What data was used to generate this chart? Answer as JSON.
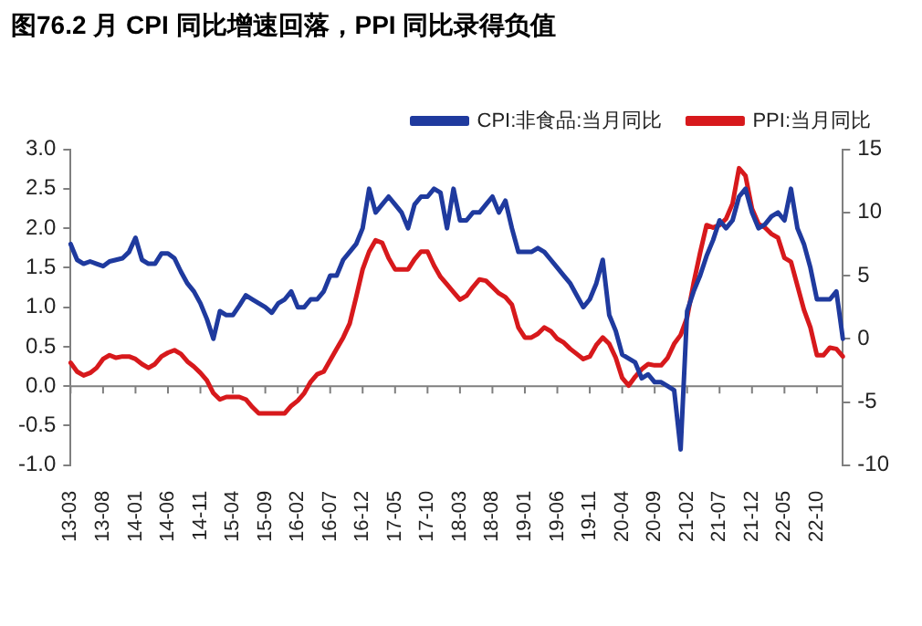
{
  "chart_data": {
    "type": "line",
    "title": "图76.2 月 CPI 同比增速回落，PPI 同比录得负值",
    "categories": [
      "13-03",
      null,
      null,
      null,
      null,
      "13-08",
      null,
      null,
      null,
      null,
      "14-01",
      null,
      null,
      null,
      null,
      "14-06",
      null,
      null,
      null,
      null,
      "14-11",
      null,
      null,
      null,
      null,
      "15-04",
      null,
      null,
      null,
      null,
      "15-09",
      null,
      null,
      null,
      null,
      "16-02",
      null,
      null,
      null,
      null,
      "16-07",
      null,
      null,
      null,
      null,
      "16-12",
      null,
      null,
      null,
      null,
      "17-05",
      null,
      null,
      null,
      null,
      "17-10",
      null,
      null,
      null,
      null,
      "18-03",
      null,
      null,
      null,
      null,
      "18-08",
      null,
      null,
      null,
      null,
      "19-01",
      null,
      null,
      null,
      null,
      "19-06",
      null,
      null,
      null,
      null,
      "19-11",
      null,
      null,
      null,
      null,
      "20-04",
      null,
      null,
      null,
      null,
      "20-09",
      null,
      null,
      null,
      null,
      "21-02",
      null,
      null,
      null,
      null,
      "21-07",
      null,
      null,
      null,
      null,
      "21-12",
      null,
      null,
      null,
      null,
      "22-05",
      null,
      null,
      null,
      null,
      "22-10",
      null,
      null,
      null,
      null
    ],
    "series": [
      {
        "name": "CPI:非食品:当月同比",
        "color": "#1f3a9e",
        "values": [
          1.8,
          1.6,
          1.55,
          1.58,
          1.55,
          1.52,
          1.58,
          1.6,
          1.62,
          1.7,
          1.88,
          1.6,
          1.55,
          1.55,
          1.68,
          1.68,
          1.62,
          1.45,
          1.3,
          1.2,
          1.05,
          0.85,
          0.6,
          0.95,
          0.9,
          0.9,
          1.02,
          1.15,
          1.1,
          1.05,
          1.0,
          0.93,
          1.05,
          1.1,
          1.2,
          1.0,
          1.0,
          1.1,
          1.1,
          1.2,
          1.4,
          1.4,
          1.6,
          1.7,
          1.8,
          2.0,
          2.5,
          2.2,
          2.3,
          2.4,
          2.3,
          2.2,
          2.0,
          2.3,
          2.4,
          2.4,
          2.5,
          2.45,
          2.0,
          2.5,
          2.1,
          2.1,
          2.2,
          2.2,
          2.3,
          2.4,
          2.2,
          2.35,
          2.0,
          1.7,
          1.7,
          1.7,
          1.75,
          1.7,
          1.6,
          1.5,
          1.4,
          1.3,
          1.15,
          1.0,
          1.1,
          1.3,
          1.6,
          0.9,
          0.7,
          0.4,
          0.35,
          0.3,
          0.1,
          0.15,
          0.05,
          0.05,
          0.0,
          -0.05,
          -0.8,
          0.95,
          1.2,
          1.4,
          1.65,
          1.85,
          2.1,
          2.0,
          2.1,
          2.4,
          2.5,
          2.2,
          2.0,
          2.05,
          2.15,
          2.2,
          2.1,
          2.5,
          2.0,
          1.8,
          1.5,
          1.1,
          1.1,
          1.1,
          1.2,
          0.6
        ]
      },
      {
        "name": "PPI:当月同比",
        "color": "#d7191c",
        "axis": "y2",
        "values": [
          -1.9,
          -2.6,
          -2.9,
          -2.7,
          -2.3,
          -1.6,
          -1.3,
          -1.5,
          -1.4,
          -1.4,
          -1.6,
          -2.0,
          -2.3,
          -2.0,
          -1.4,
          -1.1,
          -0.9,
          -1.2,
          -1.8,
          -2.2,
          -2.7,
          -3.3,
          -4.3,
          -4.8,
          -4.6,
          -4.6,
          -4.6,
          -4.8,
          -5.4,
          -5.9,
          -5.9,
          -5.9,
          -5.9,
          -5.9,
          -5.3,
          -4.9,
          -4.3,
          -3.4,
          -2.8,
          -2.6,
          -1.7,
          -0.8,
          0.1,
          1.2,
          3.3,
          5.5,
          6.9,
          7.8,
          7.6,
          6.4,
          5.5,
          5.5,
          5.5,
          6.3,
          6.9,
          6.9,
          5.8,
          4.9,
          4.3,
          3.7,
          3.1,
          3.4,
          4.1,
          4.7,
          4.6,
          4.1,
          3.6,
          3.3,
          2.7,
          0.9,
          0.1,
          0.1,
          0.4,
          0.9,
          0.6,
          0.0,
          -0.3,
          -0.8,
          -1.2,
          -1.6,
          -1.4,
          -0.5,
          0.1,
          -0.4,
          -1.5,
          -3.1,
          -3.7,
          -3.0,
          -2.4,
          -2.0,
          -2.1,
          -2.1,
          -1.5,
          -0.4,
          0.3,
          1.7,
          4.4,
          6.8,
          9.0,
          8.8,
          9.0,
          9.5,
          10.7,
          13.5,
          12.9,
          10.3,
          9.1,
          8.8,
          8.3,
          8.0,
          6.4,
          6.1,
          4.2,
          2.3,
          0.9,
          -1.3,
          -1.3,
          -0.7,
          -0.8,
          -1.4
        ]
      }
    ],
    "ylim": [
      -1,
      3
    ],
    "yticks": [
      {
        "value": -1,
        "label": "-1.0"
      },
      {
        "value": -0.5,
        "label": "-0.5"
      },
      {
        "value": 0,
        "label": "0.0"
      },
      {
        "value": 0.5,
        "label": "0.5"
      },
      {
        "value": 1,
        "label": "1.0"
      },
      {
        "value": 1.5,
        "label": "1.5"
      },
      {
        "value": 2,
        "label": "2.0"
      },
      {
        "value": 2.5,
        "label": "2.5"
      },
      {
        "value": 3,
        "label": "3.0"
      }
    ],
    "y2lim": [
      -10,
      15
    ],
    "y2ticks": [
      -10,
      -5,
      0,
      5,
      10,
      15
    ],
    "legend": "top"
  }
}
